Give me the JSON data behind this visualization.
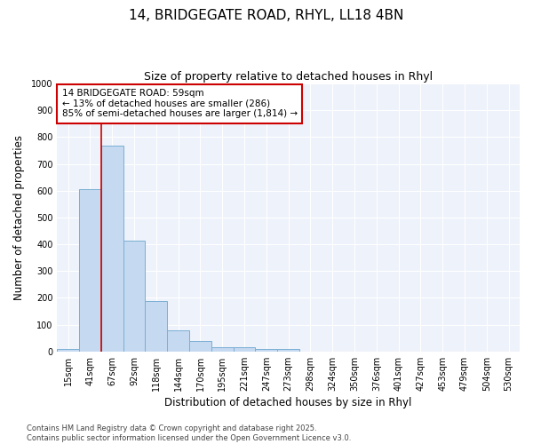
{
  "title_line1": "14, BRIDGEGATE ROAD, RHYL, LL18 4BN",
  "title_line2": "Size of property relative to detached houses in Rhyl",
  "xlabel": "Distribution of detached houses by size in Rhyl",
  "ylabel": "Number of detached properties",
  "categories": [
    "15sqm",
    "41sqm",
    "67sqm",
    "92sqm",
    "118sqm",
    "144sqm",
    "170sqm",
    "195sqm",
    "221sqm",
    "247sqm",
    "273sqm",
    "298sqm",
    "324sqm",
    "350sqm",
    "376sqm",
    "401sqm",
    "427sqm",
    "453sqm",
    "479sqm",
    "504sqm",
    "530sqm"
  ],
  "values": [
    10,
    607,
    770,
    413,
    190,
    78,
    40,
    17,
    15,
    10,
    8,
    0,
    0,
    0,
    0,
    0,
    0,
    0,
    0,
    0,
    0
  ],
  "bar_color": "#c5d9f0",
  "bar_edgecolor": "#7bafd4",
  "vline_x": 1.5,
  "vline_color": "#cc0000",
  "annotation_text": "14 BRIDGEGATE ROAD: 59sqm\n← 13% of detached houses are smaller (286)\n85% of semi-detached houses are larger (1,814) →",
  "annotation_box_color": "white",
  "annotation_box_edgecolor": "#cc0000",
  "ylim": [
    0,
    1000
  ],
  "yticks": [
    0,
    100,
    200,
    300,
    400,
    500,
    600,
    700,
    800,
    900,
    1000
  ],
  "footer_line1": "Contains HM Land Registry data © Crown copyright and database right 2025.",
  "footer_line2": "Contains public sector information licensed under the Open Government Licence v3.0.",
  "fig_background": "#ffffff",
  "plot_background": "#eef2fa",
  "grid_color": "#ffffff",
  "title1_fontsize": 11,
  "title2_fontsize": 9,
  "axis_label_fontsize": 8.5,
  "tick_fontsize": 7,
  "annotation_fontsize": 7.5,
  "footer_fontsize": 6
}
